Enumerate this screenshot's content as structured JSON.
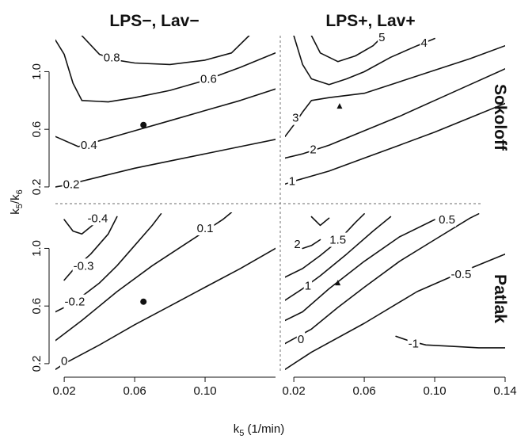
{
  "chart_data": {
    "type": "contour",
    "column_titles": [
      "LPS−, Lav−",
      "LPS+, Lav+"
    ],
    "row_titles": [
      "Sokoloff",
      "Patlak"
    ],
    "xlabel_main": "k",
    "xlabel_sub": "5",
    "xlabel_unit": " (1/min)",
    "ylabel_main": "k",
    "ylabel_sub1": "5",
    "ylabel_mid": "/k",
    "ylabel_sub2": "6",
    "xlim": [
      0.015,
      0.14
    ],
    "ylim": [
      0.15,
      1.25
    ],
    "x_ticks": [
      "0.02",
      "0.06",
      "0.10",
      "0.14"
    ],
    "y_ticks": [
      "0.2",
      "0.6",
      "1.0"
    ],
    "panels": [
      {
        "row": 0,
        "col": 0,
        "marker": {
          "shape": "circle",
          "x": 0.065,
          "y": 0.63
        },
        "contours": [
          {
            "level": "0.2",
            "points": [
              [
                0.015,
                0.2
              ],
              [
                0.02,
                0.21
              ],
              [
                0.04,
                0.27
              ],
              [
                0.06,
                0.33
              ],
              [
                0.08,
                0.38
              ],
              [
                0.1,
                0.43
              ],
              [
                0.12,
                0.48
              ],
              [
                0.14,
                0.53
              ]
            ],
            "label_at": [
              0.024,
              0.22
            ]
          },
          {
            "level": "0.4",
            "points": [
              [
                0.015,
                0.55
              ],
              [
                0.028,
                0.48
              ],
              [
                0.04,
                0.52
              ],
              [
                0.06,
                0.59
              ],
              [
                0.08,
                0.66
              ],
              [
                0.1,
                0.73
              ],
              [
                0.12,
                0.8
              ],
              [
                0.14,
                0.88
              ]
            ],
            "label_at": [
              0.034,
              0.49
            ]
          },
          {
            "level": "0.6",
            "points": [
              [
                0.015,
                1.22
              ],
              [
                0.02,
                1.12
              ],
              [
                0.025,
                0.92
              ],
              [
                0.03,
                0.8
              ],
              [
                0.045,
                0.79
              ],
              [
                0.06,
                0.82
              ],
              [
                0.08,
                0.87
              ],
              [
                0.1,
                0.94
              ],
              [
                0.12,
                1.03
              ],
              [
                0.14,
                1.13
              ]
            ],
            "label_at": [
              0.102,
              0.95
            ]
          },
          {
            "level": "0.8",
            "points": [
              [
                0.03,
                1.25
              ],
              [
                0.04,
                1.12
              ],
              [
                0.05,
                1.08
              ],
              [
                0.06,
                1.06
              ],
              [
                0.08,
                1.05
              ],
              [
                0.1,
                1.08
              ],
              [
                0.115,
                1.13
              ],
              [
                0.125,
                1.25
              ]
            ],
            "label_at": [
              0.047,
              1.1
            ]
          }
        ]
      },
      {
        "row": 0,
        "col": 1,
        "marker": {
          "shape": "triangle",
          "x": 0.046,
          "y": 0.76
        },
        "contours": [
          {
            "level": "1",
            "points": [
              [
                0.015,
                0.22
              ],
              [
                0.02,
                0.24
              ],
              [
                0.04,
                0.31
              ],
              [
                0.06,
                0.4
              ],
              [
                0.08,
                0.49
              ],
              [
                0.1,
                0.58
              ],
              [
                0.12,
                0.68
              ],
              [
                0.14,
                0.78
              ]
            ],
            "label_at": [
              0.019,
              0.24
            ]
          },
          {
            "level": "2",
            "points": [
              [
                0.015,
                0.4
              ],
              [
                0.025,
                0.43
              ],
              [
                0.04,
                0.49
              ],
              [
                0.06,
                0.59
              ],
              [
                0.08,
                0.69
              ],
              [
                0.1,
                0.8
              ],
              [
                0.12,
                0.91
              ],
              [
                0.14,
                1.02
              ]
            ],
            "label_at": [
              0.031,
              0.46
            ]
          },
          {
            "level": "3",
            "points": [
              [
                0.015,
                0.55
              ],
              [
                0.02,
                0.63
              ],
              [
                0.025,
                0.72
              ],
              [
                0.03,
                0.8
              ],
              [
                0.04,
                0.82
              ],
              [
                0.06,
                0.85
              ],
              [
                0.08,
                0.93
              ],
              [
                0.1,
                1.01
              ],
              [
                0.12,
                1.09
              ],
              [
                0.14,
                1.18
              ]
            ],
            "label_at": [
              0.021,
              0.68
            ]
          },
          {
            "level": "4",
            "points": [
              [
                0.02,
                1.25
              ],
              [
                0.025,
                1.05
              ],
              [
                0.03,
                0.95
              ],
              [
                0.04,
                0.91
              ],
              [
                0.05,
                0.95
              ],
              [
                0.06,
                1.0
              ],
              [
                0.075,
                1.1
              ],
              [
                0.09,
                1.18
              ],
              [
                0.1,
                1.23
              ]
            ],
            "label_at": [
              0.094,
              1.2
            ]
          },
          {
            "level": "5",
            "points": [
              [
                0.03,
                1.25
              ],
              [
                0.035,
                1.13
              ],
              [
                0.045,
                1.07
              ],
              [
                0.055,
                1.11
              ],
              [
                0.065,
                1.18
              ],
              [
                0.07,
                1.24
              ]
            ],
            "label_at": [
              0.07,
              1.24
            ]
          }
        ]
      },
      {
        "row": 1,
        "col": 0,
        "marker": {
          "shape": "circle",
          "x": 0.065,
          "y": 0.63
        },
        "contours": [
          {
            "level": "0",
            "points": [
              [
                0.015,
                0.16
              ],
              [
                0.02,
                0.2
              ],
              [
                0.04,
                0.33
              ],
              [
                0.06,
                0.47
              ],
              [
                0.08,
                0.6
              ],
              [
                0.1,
                0.73
              ],
              [
                0.12,
                0.86
              ],
              [
                0.14,
                1.0
              ]
            ],
            "label_at": [
              0.02,
              0.22
            ]
          },
          {
            "level": "0.1",
            "points": [
              [
                0.015,
                0.36
              ],
              [
                0.03,
                0.5
              ],
              [
                0.05,
                0.7
              ],
              [
                0.07,
                0.88
              ],
              [
                0.09,
                1.04
              ],
              [
                0.11,
                1.2
              ],
              [
                0.115,
                1.25
              ]
            ],
            "label_at": [
              0.1,
              1.14
            ]
          },
          {
            "level": "-0.2",
            "points": [
              [
                0.015,
                0.56
              ],
              [
                0.025,
                0.62
              ],
              [
                0.04,
                0.76
              ],
              [
                0.05,
                0.88
              ],
              [
                0.06,
                1.02
              ],
              [
                0.07,
                1.16
              ],
              [
                0.075,
                1.24
              ]
            ],
            "label_at": [
              0.026,
              0.63
            ]
          },
          {
            "level": "-0.3",
            "points": [
              [
                0.02,
                0.78
              ],
              [
                0.025,
                0.85
              ],
              [
                0.035,
                0.96
              ],
              [
                0.045,
                1.1
              ],
              [
                0.05,
                1.22
              ]
            ],
            "label_at": [
              0.031,
              0.88
            ]
          },
          {
            "level": "-0.4",
            "points": [
              [
                0.02,
                1.2
              ],
              [
                0.025,
                1.12
              ],
              [
                0.03,
                1.1
              ],
              [
                0.04,
                1.2
              ],
              [
                0.043,
                1.24
              ]
            ],
            "label_at": [
              0.039,
              1.21
            ]
          }
        ]
      },
      {
        "row": 1,
        "col": 1,
        "marker": {
          "shape": "triangle",
          "x": 0.045,
          "y": 0.76
        },
        "contours": [
          {
            "level": "-1",
            "points": [
              [
                0.078,
                0.39
              ],
              [
                0.085,
                0.36
              ],
              [
                0.095,
                0.33
              ],
              [
                0.11,
                0.32
              ],
              [
                0.125,
                0.31
              ],
              [
                0.14,
                0.31
              ]
            ],
            "label_at": [
              0.088,
              0.34
            ]
          },
          {
            "level": "-0.5",
            "points": [
              [
                0.015,
                0.16
              ],
              [
                0.03,
                0.28
              ],
              [
                0.06,
                0.48
              ],
              [
                0.09,
                0.7
              ],
              [
                0.12,
                0.86
              ],
              [
                0.14,
                0.96
              ]
            ],
            "label_at": [
              0.115,
              0.82
            ]
          },
          {
            "level": "0",
            "points": [
              [
                0.015,
                0.34
              ],
              [
                0.03,
                0.44
              ],
              [
                0.045,
                0.59
              ],
              [
                0.06,
                0.73
              ],
              [
                0.08,
                0.91
              ],
              [
                0.1,
                1.06
              ],
              [
                0.12,
                1.21
              ],
              [
                0.125,
                1.24
              ]
            ],
            "label_at": [
              0.024,
              0.37
            ]
          },
          {
            "level": "0.5",
            "points": [
              [
                0.015,
                0.5
              ],
              [
                0.025,
                0.56
              ],
              [
                0.04,
                0.72
              ],
              [
                0.06,
                0.91
              ],
              [
                0.08,
                1.08
              ],
              [
                0.1,
                1.2
              ]
            ],
            "label_at": [
              0.107,
              1.2
            ]
          },
          {
            "level": "1",
            "points": [
              [
                0.015,
                0.64
              ],
              [
                0.025,
                0.72
              ],
              [
                0.035,
                0.81
              ],
              [
                0.05,
                0.96
              ],
              [
                0.065,
                1.12
              ],
              [
                0.075,
                1.22
              ]
            ],
            "label_at": [
              0.028,
              0.74
            ]
          },
          {
            "level": "1.5",
            "points": [
              [
                0.015,
                0.8
              ],
              [
                0.025,
                0.86
              ],
              [
                0.035,
                0.95
              ],
              [
                0.045,
                1.05
              ],
              [
                0.055,
                1.18
              ],
              [
                0.06,
                1.24
              ]
            ],
            "label_at": [
              0.045,
              1.06
            ]
          },
          {
            "level": "2",
            "points": [
              [
                0.025,
                1.0
              ],
              [
                0.03,
                1.02
              ],
              [
                0.035,
                1.06
              ]
            ],
            "label_at": [
              0.022,
              1.03
            ]
          },
          {
            "level": "",
            "points": [
              [
                0.03,
                1.22
              ],
              [
                0.035,
                1.16
              ],
              [
                0.04,
                1.21
              ]
            ],
            "label_at": null
          }
        ]
      }
    ]
  }
}
